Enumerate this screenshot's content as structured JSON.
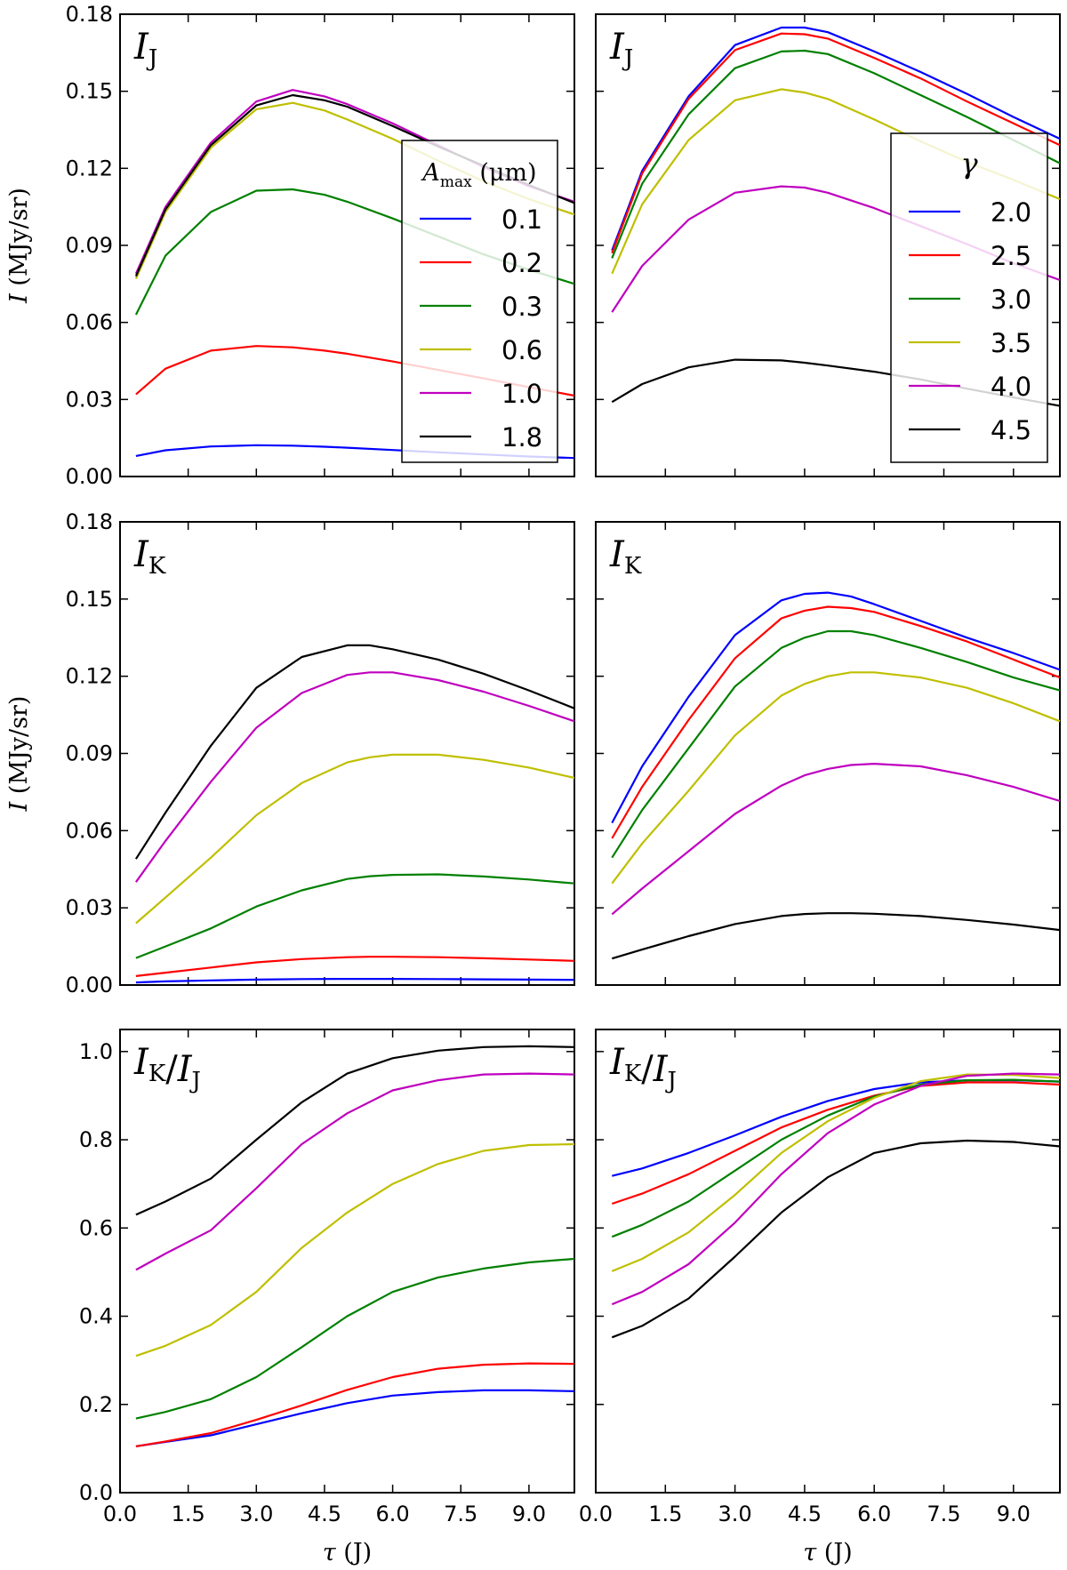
{
  "chart_data": [
    {
      "type": "line",
      "title": "I_J",
      "xlabel": "",
      "ylabel": "I (MJy/sr)",
      "xlim": [
        0,
        10
      ],
      "ylim": [
        0,
        0.18
      ],
      "xticks": [
        0.0,
        1.5,
        3.0,
        4.5,
        6.0,
        7.5,
        9.0
      ],
      "yticks": [
        "0.00",
        "0.03",
        "0.06",
        "0.09",
        "0.12",
        "0.15",
        "0.18"
      ],
      "show_xticklabels": false,
      "show_yticklabels": true,
      "legend": {
        "title": "A_max (μm)",
        "position": "right"
      },
      "x": [
        0.35,
        1,
        2,
        3,
        3.8,
        4.5,
        5,
        6,
        7,
        8,
        9,
        10
      ],
      "series": [
        {
          "name": "0.1",
          "color": "#0000ff",
          "values": [
            0.008,
            0.0102,
            0.0117,
            0.0122,
            0.012,
            0.0116,
            0.0112,
            0.0103,
            0.0094,
            0.0086,
            0.0078,
            0.0072
          ]
        },
        {
          "name": "0.2",
          "color": "#ff0000",
          "values": [
            0.032,
            0.042,
            0.049,
            0.0508,
            0.0503,
            0.049,
            0.0478,
            0.0448,
            0.0415,
            0.0382,
            0.0348,
            0.0315
          ]
        },
        {
          "name": "0.3",
          "color": "#008000",
          "values": [
            0.063,
            0.086,
            0.103,
            0.1113,
            0.1118,
            0.1097,
            0.107,
            0.1005,
            0.0935,
            0.0865,
            0.0805,
            0.075
          ]
        },
        {
          "name": "0.6",
          "color": "#bfbf00",
          "values": [
            0.077,
            0.103,
            0.128,
            0.143,
            0.1455,
            0.1425,
            0.139,
            0.1315,
            0.123,
            0.115,
            0.108,
            0.102
          ]
        },
        {
          "name": "1.0",
          "color": "#bf00bf",
          "values": [
            0.079,
            0.105,
            0.13,
            0.146,
            0.1505,
            0.148,
            0.145,
            0.1375,
            0.129,
            0.1205,
            0.113,
            0.107
          ]
        },
        {
          "name": "1.8",
          "color": "#000000",
          "values": [
            0.078,
            0.104,
            0.129,
            0.1445,
            0.1485,
            0.1465,
            0.144,
            0.1365,
            0.1285,
            0.121,
            0.1135,
            0.1065
          ]
        }
      ]
    },
    {
      "type": "line",
      "title": "I_J",
      "xlabel": "",
      "ylabel": "",
      "xlim": [
        0,
        10
      ],
      "ylim": [
        0,
        0.18
      ],
      "xticks": [
        0.0,
        1.5,
        3.0,
        4.5,
        6.0,
        7.5,
        9.0
      ],
      "yticks": [
        "0.00",
        "0.03",
        "0.06",
        "0.09",
        "0.12",
        "0.15",
        "0.18"
      ],
      "show_xticklabels": false,
      "show_yticklabels": false,
      "legend": {
        "title": "γ",
        "position": "right"
      },
      "x": [
        0.35,
        1,
        2,
        3,
        4,
        4.5,
        5,
        6,
        7,
        8,
        9,
        10
      ],
      "series": [
        {
          "name": "2.0",
          "color": "#0000ff",
          "values": [
            0.088,
            0.119,
            0.148,
            0.168,
            0.1748,
            0.1748,
            0.173,
            0.1655,
            0.1575,
            0.149,
            0.14,
            0.1315
          ]
        },
        {
          "name": "2.5",
          "color": "#ff0000",
          "values": [
            0.087,
            0.118,
            0.147,
            0.166,
            0.1725,
            0.1722,
            0.1705,
            0.163,
            0.155,
            0.146,
            0.1375,
            0.129
          ]
        },
        {
          "name": "3.0",
          "color": "#008000",
          "values": [
            0.085,
            0.114,
            0.141,
            0.159,
            0.1655,
            0.1658,
            0.1645,
            0.157,
            0.1485,
            0.14,
            0.131,
            0.122
          ]
        },
        {
          "name": "3.5",
          "color": "#bfbf00",
          "values": [
            0.079,
            0.106,
            0.131,
            0.1465,
            0.1508,
            0.1495,
            0.147,
            0.139,
            0.1305,
            0.1225,
            0.1155,
            0.108
          ]
        },
        {
          "name": "4.0",
          "color": "#bf00bf",
          "values": [
            0.064,
            0.082,
            0.1,
            0.1105,
            0.113,
            0.1125,
            0.1105,
            0.1045,
            0.0975,
            0.0905,
            0.083,
            0.0765
          ]
        },
        {
          "name": "4.5",
          "color": "#000000",
          "values": [
            0.029,
            0.036,
            0.0425,
            0.0455,
            0.0452,
            0.0443,
            0.0432,
            0.0408,
            0.0378,
            0.0342,
            0.0308,
            0.0275
          ]
        }
      ]
    },
    {
      "type": "line",
      "title": "I_K",
      "xlabel": "",
      "ylabel": "I (MJy/sr)",
      "xlim": [
        0,
        10
      ],
      "ylim": [
        0,
        0.18
      ],
      "xticks": [
        0.0,
        1.5,
        3.0,
        4.5,
        6.0,
        7.5,
        9.0
      ],
      "yticks": [
        "0.00",
        "0.03",
        "0.06",
        "0.09",
        "0.12",
        "0.15",
        "0.18"
      ],
      "show_xticklabels": false,
      "show_yticklabels": true,
      "x": [
        0.35,
        1,
        2,
        3,
        4,
        5,
        5.5,
        6,
        7,
        8,
        9,
        10
      ],
      "series": [
        {
          "name": "0.1",
          "color": "#0000ff",
          "values": [
            0.001,
            0.0014,
            0.0018,
            0.0021,
            0.0023,
            0.0024,
            0.0024,
            0.0024,
            0.0023,
            0.0022,
            0.0021,
            0.002
          ]
        },
        {
          "name": "0.2",
          "color": "#ff0000",
          "values": [
            0.0035,
            0.0048,
            0.0068,
            0.0088,
            0.0101,
            0.0108,
            0.011,
            0.011,
            0.0108,
            0.0104,
            0.0099,
            0.0094
          ]
        },
        {
          "name": "0.3",
          "color": "#008000",
          "values": [
            0.0105,
            0.015,
            0.022,
            0.0305,
            0.0368,
            0.0412,
            0.0423,
            0.0428,
            0.043,
            0.0422,
            0.041,
            0.0395
          ]
        },
        {
          "name": "0.6",
          "color": "#bfbf00",
          "values": [
            0.024,
            0.034,
            0.0495,
            0.066,
            0.0785,
            0.0865,
            0.0885,
            0.0895,
            0.0895,
            0.0875,
            0.0845,
            0.0805
          ]
        },
        {
          "name": "1.0",
          "color": "#bf00bf",
          "values": [
            0.04,
            0.056,
            0.079,
            0.1,
            0.1135,
            0.1205,
            0.1215,
            0.1215,
            0.1185,
            0.114,
            0.1085,
            0.1025
          ]
        },
        {
          "name": "1.8",
          "color": "#000000",
          "values": [
            0.049,
            0.067,
            0.093,
            0.1155,
            0.1275,
            0.132,
            0.132,
            0.1305,
            0.1265,
            0.121,
            0.1145,
            0.1075
          ]
        }
      ]
    },
    {
      "type": "line",
      "title": "I_K",
      "xlabel": "",
      "ylabel": "",
      "xlim": [
        0,
        10
      ],
      "ylim": [
        0,
        0.18
      ],
      "xticks": [
        0.0,
        1.5,
        3.0,
        4.5,
        6.0,
        7.5,
        9.0
      ],
      "yticks": [
        "0.00",
        "0.03",
        "0.06",
        "0.09",
        "0.12",
        "0.15",
        "0.18"
      ],
      "show_xticklabels": false,
      "show_yticklabels": false,
      "x": [
        0.35,
        1,
        2,
        3,
        4,
        4.5,
        5,
        5.5,
        6,
        7,
        8,
        9,
        10
      ],
      "series": [
        {
          "name": "2.0",
          "color": "#0000ff",
          "values": [
            0.063,
            0.085,
            0.112,
            0.136,
            0.1495,
            0.152,
            0.1525,
            0.151,
            0.148,
            0.1415,
            0.135,
            0.129,
            0.1225
          ]
        },
        {
          "name": "2.5",
          "color": "#ff0000",
          "values": [
            0.057,
            0.077,
            0.103,
            0.127,
            0.1425,
            0.1455,
            0.147,
            0.1465,
            0.145,
            0.1395,
            0.1335,
            0.1265,
            0.1195
          ]
        },
        {
          "name": "3.0",
          "color": "#008000",
          "values": [
            0.0495,
            0.068,
            0.092,
            0.116,
            0.131,
            0.135,
            0.1375,
            0.1375,
            0.136,
            0.131,
            0.1255,
            0.1195,
            0.1145
          ]
        },
        {
          "name": "3.5",
          "color": "#bfbf00",
          "values": [
            0.0395,
            0.055,
            0.0755,
            0.097,
            0.1125,
            0.117,
            0.12,
            0.1215,
            0.1215,
            0.1195,
            0.1155,
            0.1095,
            0.1025
          ]
        },
        {
          "name": "4.0",
          "color": "#bf00bf",
          "values": [
            0.0275,
            0.0375,
            0.052,
            0.0665,
            0.0775,
            0.0815,
            0.084,
            0.0855,
            0.086,
            0.085,
            0.0815,
            0.077,
            0.0715
          ]
        },
        {
          "name": "4.5",
          "color": "#000000",
          "values": [
            0.0103,
            0.0138,
            0.019,
            0.0237,
            0.0268,
            0.0276,
            0.0279,
            0.0279,
            0.0277,
            0.0268,
            0.0253,
            0.0235,
            0.0214
          ]
        }
      ]
    },
    {
      "type": "line",
      "title": "I_K/I_J",
      "xlabel": "τ (J)",
      "ylabel": "",
      "xlim": [
        0,
        10
      ],
      "ylim": [
        0,
        1.05
      ],
      "xticks": [
        0.0,
        1.5,
        3.0,
        4.5,
        6.0,
        7.5,
        9.0
      ],
      "xticklabels": [
        "0.0",
        "1.5",
        "3.0",
        "4.5",
        "6.0",
        "7.5",
        "9.0"
      ],
      "yticks": [
        "0.0",
        "0.2",
        "0.4",
        "0.6",
        "0.8",
        "1.0"
      ],
      "show_xticklabels": true,
      "show_yticklabels": true,
      "x": [
        0.35,
        1,
        2,
        3,
        4,
        5,
        6,
        7,
        8,
        9,
        10
      ],
      "series": [
        {
          "name": "0.1",
          "color": "#0000ff",
          "values": [
            0.105,
            0.115,
            0.13,
            0.155,
            0.18,
            0.203,
            0.22,
            0.228,
            0.232,
            0.232,
            0.23
          ]
        },
        {
          "name": "0.2",
          "color": "#ff0000",
          "values": [
            0.105,
            0.116,
            0.135,
            0.165,
            0.198,
            0.233,
            0.262,
            0.281,
            0.29,
            0.293,
            0.292
          ]
        },
        {
          "name": "0.3",
          "color": "#008000",
          "values": [
            0.168,
            0.183,
            0.212,
            0.262,
            0.33,
            0.4,
            0.455,
            0.488,
            0.508,
            0.522,
            0.53
          ]
        },
        {
          "name": "0.6",
          "color": "#bfbf00",
          "values": [
            0.31,
            0.333,
            0.38,
            0.455,
            0.555,
            0.635,
            0.7,
            0.745,
            0.775,
            0.788,
            0.79
          ]
        },
        {
          "name": "1.0",
          "color": "#bf00bf",
          "values": [
            0.505,
            0.542,
            0.595,
            0.69,
            0.79,
            0.86,
            0.912,
            0.935,
            0.948,
            0.95,
            0.948
          ]
        },
        {
          "name": "1.8",
          "color": "#000000",
          "values": [
            0.63,
            0.66,
            0.712,
            0.8,
            0.885,
            0.95,
            0.985,
            1.002,
            1.01,
            1.012,
            1.01
          ]
        }
      ]
    },
    {
      "type": "line",
      "title": "I_K/I_J",
      "xlabel": "τ (J)",
      "ylabel": "",
      "xlim": [
        0,
        10
      ],
      "ylim": [
        0,
        1.05
      ],
      "xticks": [
        0.0,
        1.5,
        3.0,
        4.5,
        6.0,
        7.5,
        9.0
      ],
      "xticklabels": [
        "0.0",
        "1.5",
        "3.0",
        "4.5",
        "6.0",
        "7.5",
        "9.0"
      ],
      "yticks": [
        "0.0",
        "0.2",
        "0.4",
        "0.6",
        "0.8",
        "1.0"
      ],
      "show_xticklabels": true,
      "show_yticklabels": false,
      "x": [
        0.35,
        1,
        2,
        3,
        4,
        5,
        6,
        7,
        8,
        9,
        10
      ],
      "series": [
        {
          "name": "2.0",
          "color": "#0000ff",
          "values": [
            0.718,
            0.735,
            0.77,
            0.81,
            0.852,
            0.888,
            0.915,
            0.93,
            0.935,
            0.935,
            0.932
          ]
        },
        {
          "name": "2.5",
          "color": "#ff0000",
          "values": [
            0.655,
            0.678,
            0.722,
            0.775,
            0.828,
            0.868,
            0.9,
            0.922,
            0.93,
            0.93,
            0.925
          ]
        },
        {
          "name": "3.0",
          "color": "#008000",
          "values": [
            0.58,
            0.607,
            0.66,
            0.73,
            0.8,
            0.855,
            0.898,
            0.925,
            0.935,
            0.936,
            0.932
          ]
        },
        {
          "name": "3.5",
          "color": "#bfbf00",
          "values": [
            0.502,
            0.53,
            0.59,
            0.675,
            0.77,
            0.842,
            0.895,
            0.933,
            0.948,
            0.947,
            0.94
          ]
        },
        {
          "name": "4.0",
          "color": "#bf00bf",
          "values": [
            0.427,
            0.455,
            0.518,
            0.612,
            0.722,
            0.815,
            0.88,
            0.922,
            0.945,
            0.95,
            0.948
          ]
        },
        {
          "name": "4.5",
          "color": "#000000",
          "values": [
            0.352,
            0.378,
            0.44,
            0.535,
            0.635,
            0.715,
            0.77,
            0.792,
            0.798,
            0.795,
            0.785
          ]
        }
      ]
    }
  ]
}
